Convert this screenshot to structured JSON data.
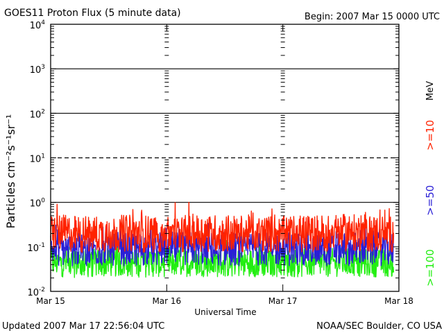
{
  "header": {
    "title": "GOES11 Proton Flux (5 minute data)",
    "begin": "Begin: 2007 Mar 15 0000 UTC"
  },
  "footer": {
    "updated": "Updated 2007 Mar 17 22:56:04 UTC",
    "credit": "NOAA/SEC Boulder, CO USA"
  },
  "chart_data": {
    "type": "line",
    "title": "GOES11 Proton Flux (5 minute data)",
    "xlabel": "Universal Time",
    "ylabel": "Particles cm⁻²s⁻¹sr⁻¹",
    "y_scale": "log",
    "ylim": [
      0.01,
      10000
    ],
    "xlim": [
      "2007-03-15",
      "2007-03-18"
    ],
    "x_ticks": [
      "Mar 15",
      "Mar 16",
      "Mar 17",
      "Mar 18"
    ],
    "y_ticks": [
      {
        "value": 0.01,
        "base": "10",
        "exp": "-2"
      },
      {
        "value": 0.1,
        "base": "10",
        "exp": "-1"
      },
      {
        "value": 1,
        "base": "10",
        "exp": "0"
      },
      {
        "value": 10,
        "base": "10",
        "exp": "1"
      },
      {
        "value": 100,
        "base": "10",
        "exp": "2"
      },
      {
        "value": 1000,
        "base": "10",
        "exp": "3"
      },
      {
        "value": 10000,
        "base": "10",
        "exp": "4"
      }
    ],
    "horizontal_lines": [
      {
        "value": 1,
        "style": "solid"
      },
      {
        "value": 10,
        "style": "dashed"
      },
      {
        "value": 100,
        "style": "solid"
      },
      {
        "value": 1000,
        "style": "solid"
      }
    ],
    "legend": {
      "unit": "MeV",
      "placement": "right, vertical"
    },
    "series": [
      {
        "name": ">=10",
        "color": "#ff2200",
        "values": [
          {
            "x": "2007-03-15 00:00",
            "y": 0.22
          },
          {
            "x": "2007-03-15 06:00",
            "y": 0.19
          },
          {
            "x": "2007-03-15 12:00",
            "y": 0.2
          },
          {
            "x": "2007-03-15 18:00",
            "y": 0.2
          },
          {
            "x": "2007-03-16 00:00",
            "y": 0.19
          },
          {
            "x": "2007-03-16 06:00",
            "y": 0.21
          },
          {
            "x": "2007-03-16 12:00",
            "y": 0.2
          },
          {
            "x": "2007-03-16 18:00",
            "y": 0.2
          },
          {
            "x": "2007-03-17 00:00",
            "y": 0.19
          },
          {
            "x": "2007-03-17 06:00",
            "y": 0.2
          },
          {
            "x": "2007-03-17 12:00",
            "y": 0.21
          },
          {
            "x": "2007-03-17 18:00",
            "y": 0.2
          },
          {
            "x": "2007-03-17 22:55",
            "y": 0.2
          }
        ]
      },
      {
        "name": ">=50",
        "color": "#2a1fd6",
        "values": [
          {
            "x": "2007-03-15 00:00",
            "y": 0.09
          },
          {
            "x": "2007-03-15 06:00",
            "y": 0.085
          },
          {
            "x": "2007-03-15 12:00",
            "y": 0.09
          },
          {
            "x": "2007-03-15 18:00",
            "y": 0.088
          },
          {
            "x": "2007-03-16 00:00",
            "y": 0.09
          },
          {
            "x": "2007-03-16 06:00",
            "y": 0.092
          },
          {
            "x": "2007-03-16 12:00",
            "y": 0.088
          },
          {
            "x": "2007-03-16 18:00",
            "y": 0.09
          },
          {
            "x": "2007-03-17 00:00",
            "y": 0.089
          },
          {
            "x": "2007-03-17 06:00",
            "y": 0.09
          },
          {
            "x": "2007-03-17 12:00",
            "y": 0.091
          },
          {
            "x": "2007-03-17 18:00",
            "y": 0.09
          },
          {
            "x": "2007-03-17 22:55",
            "y": 0.09
          }
        ]
      },
      {
        "name": ">=100",
        "color": "#22ee11",
        "values": [
          {
            "x": "2007-03-15 00:00",
            "y": 0.045
          },
          {
            "x": "2007-03-15 06:00",
            "y": 0.042
          },
          {
            "x": "2007-03-15 12:00",
            "y": 0.044
          },
          {
            "x": "2007-03-15 18:00",
            "y": 0.043
          },
          {
            "x": "2007-03-16 00:00",
            "y": 0.044
          },
          {
            "x": "2007-03-16 06:00",
            "y": 0.045
          },
          {
            "x": "2007-03-16 12:00",
            "y": 0.043
          },
          {
            "x": "2007-03-16 18:00",
            "y": 0.044
          },
          {
            "x": "2007-03-17 00:00",
            "y": 0.044
          },
          {
            "x": "2007-03-17 06:00",
            "y": 0.043
          },
          {
            "x": "2007-03-17 12:00",
            "y": 0.045
          },
          {
            "x": "2007-03-17 18:00",
            "y": 0.044
          },
          {
            "x": "2007-03-17 22:55",
            "y": 0.044
          }
        ]
      }
    ]
  }
}
